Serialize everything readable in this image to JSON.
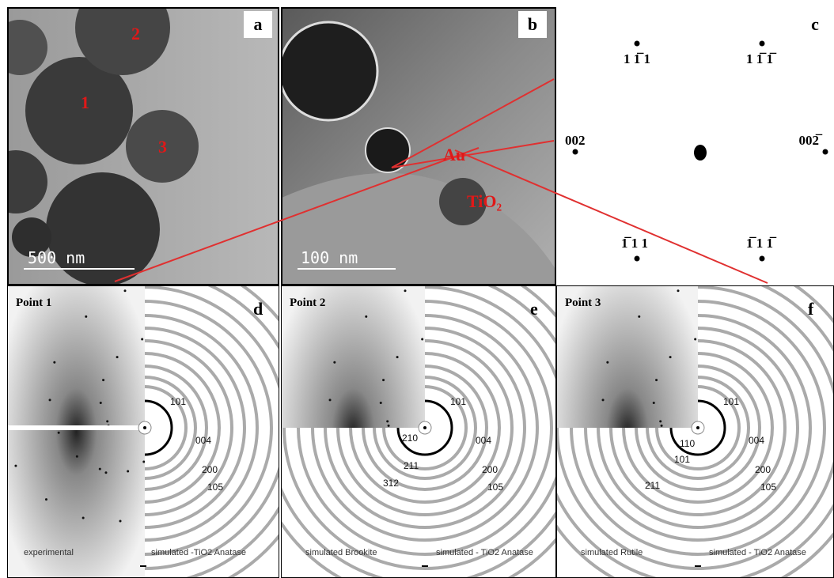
{
  "panels": [
    {
      "letter": "a",
      "labels": [
        "1",
        "2",
        "3"
      ],
      "scale_bar": "500 nm"
    },
    {
      "letter": "b",
      "labels": [
        "Au",
        "TiO₂"
      ],
      "scale_bar": "100 nm"
    },
    {
      "letter": "c",
      "spots": [
        "1 1̅ 1",
        "1 1̅ 1̅",
        "002",
        "002̅",
        "1̅ 1 1",
        "1̅ 1 1̅"
      ]
    },
    {
      "letter": "d",
      "title": "Point 1",
      "left_rings": [],
      "right_rings": [
        "101",
        "004",
        "200",
        "105"
      ],
      "captions": [
        "experimental",
        "simulated -TiO2  Anatase"
      ]
    },
    {
      "letter": "e",
      "title": "Point 2",
      "left_rings": [
        "210",
        "211",
        "312"
      ],
      "right_rings": [
        "101",
        "004",
        "200",
        "105"
      ],
      "captions": [
        "simulated Brookite",
        "simulated - TiO2 Anatase"
      ]
    },
    {
      "letter": "f",
      "title": "Point 3",
      "left_rings": [
        "110",
        "101",
        "211"
      ],
      "right_rings": [
        "101",
        "004",
        "200",
        "105"
      ],
      "captions": [
        "simulated Rutile",
        "simulated - TiO2 Anatase"
      ]
    }
  ]
}
